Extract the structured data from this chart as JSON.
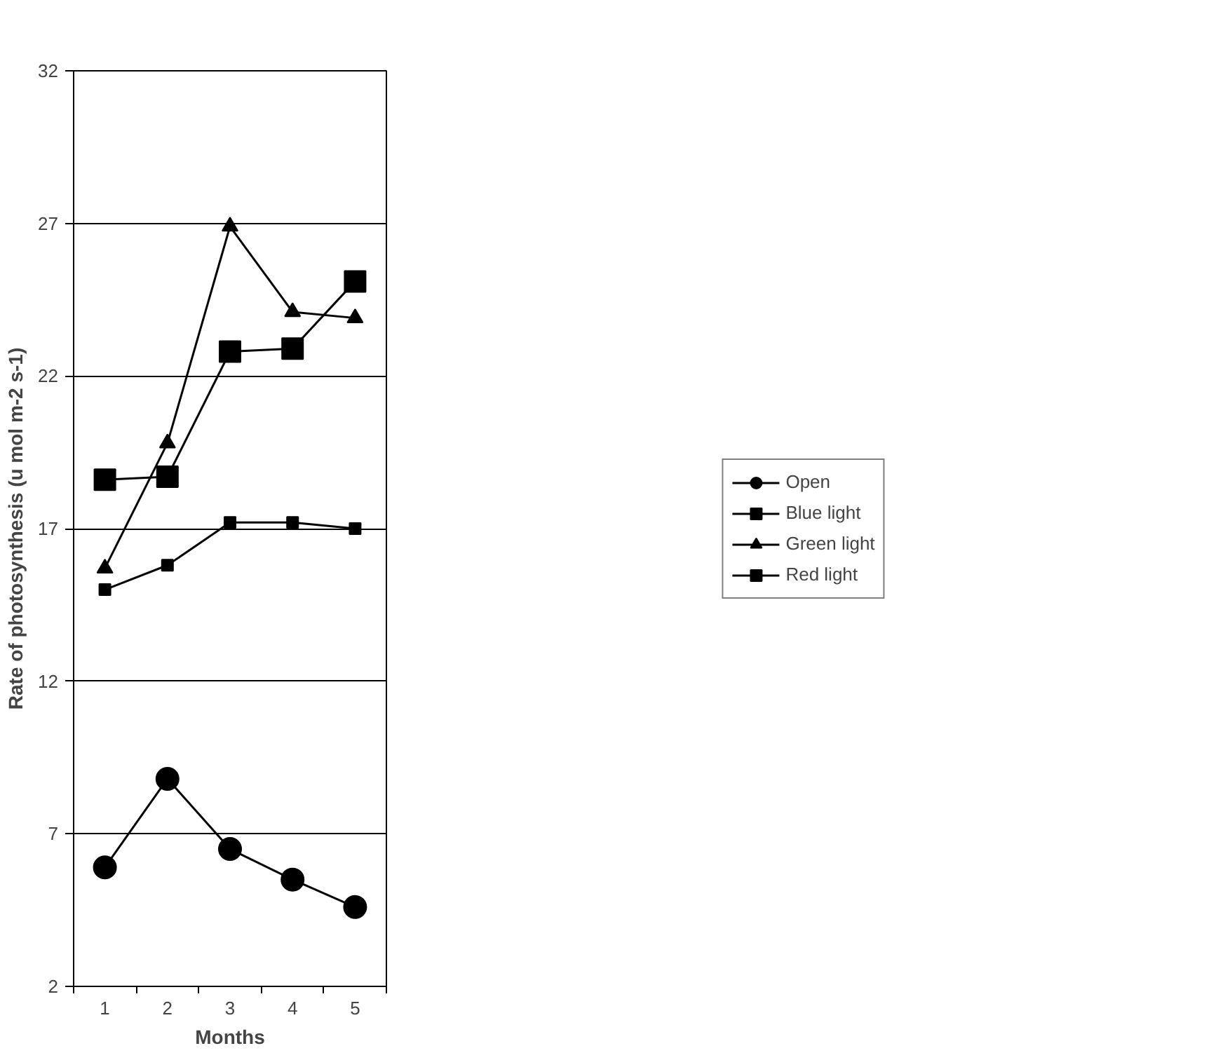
{
  "chart_data": {
    "type": "line",
    "xlabel": "Months",
    "ylabel": "Rate of photosynthesis (u mol m-2 s-1)",
    "categories": [
      "1",
      "2",
      "3",
      "4",
      "5"
    ],
    "ylim": [
      2,
      32
    ],
    "yticks": [
      2,
      7,
      12,
      17,
      22,
      27,
      32
    ],
    "grid": "y",
    "legend": "right",
    "series": [
      {
        "name": "Open",
        "color": "#000000",
        "marker": "circle",
        "values": [
          5.9,
          8.8,
          6.5,
          5.5,
          4.6
        ]
      },
      {
        "name": "Blue light",
        "color": "#000000",
        "marker": "square",
        "values": [
          15.0,
          15.8,
          17.2,
          17.2,
          17.0
        ]
      },
      {
        "name": "Green light",
        "color": "#000000",
        "marker": "triangle",
        "values": [
          15.7,
          19.8,
          26.9,
          24.1,
          23.9
        ]
      },
      {
        "name": "Red light",
        "color": "#000000",
        "marker": "square",
        "values": [
          18.6,
          18.7,
          22.8,
          22.9,
          25.1
        ]
      }
    ]
  }
}
